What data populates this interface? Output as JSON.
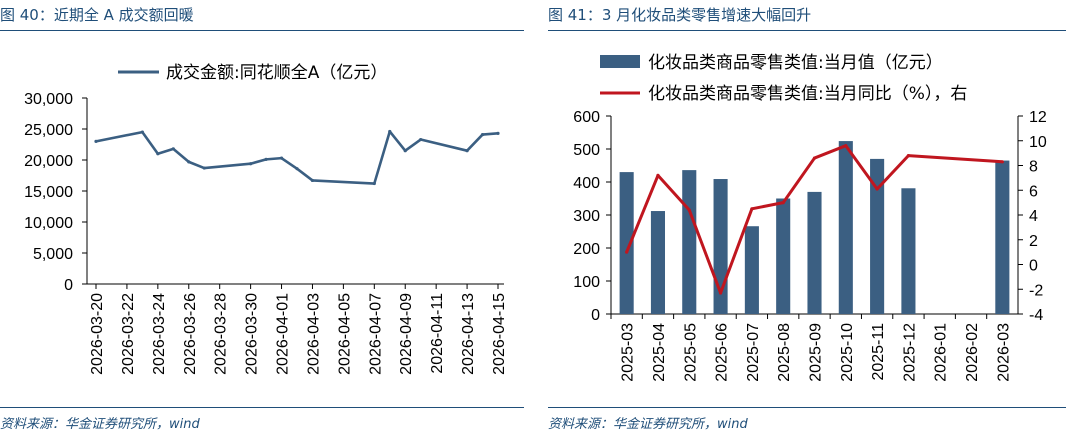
{
  "left": {
    "title": "图 40：近期全 A 成交额回暖",
    "source": "资料来源：华金证券研究所，wind",
    "chart_data": {
      "type": "line",
      "title": "",
      "xlabel": "",
      "ylabel": "",
      "ylim": [
        0,
        30000
      ],
      "yticks": [
        "0",
        "5,000",
        "10,000",
        "15,000",
        "20,000",
        "25,000",
        "30,000"
      ],
      "x_tick_labels": [
        "2026-03-20",
        "2026-03-22",
        "2026-03-24",
        "2026-03-26",
        "2026-03-28",
        "2026-03-30",
        "2026-04-01",
        "2026-04-03",
        "2026-04-05",
        "2026-04-07",
        "2026-04-09",
        "2026-04-11",
        "2026-04-13",
        "2026-04-15"
      ],
      "grid": false,
      "legend_position": "top",
      "series": [
        {
          "name": "成交金额:同花顺全A（亿元）",
          "color": "#3b5f82",
          "points": [
            {
              "x": "2026-03-20",
              "y": 23000
            },
            {
              "x": "2026-03-23",
              "y": 24500
            },
            {
              "x": "2026-03-24",
              "y": 21000
            },
            {
              "x": "2026-03-25",
              "y": 21800
            },
            {
              "x": "2026-03-26",
              "y": 19700
            },
            {
              "x": "2026-03-27",
              "y": 18700
            },
            {
              "x": "2026-03-30",
              "y": 19400
            },
            {
              "x": "2026-03-31",
              "y": 20100
            },
            {
              "x": "2026-04-01",
              "y": 20300
            },
            {
              "x": "2026-04-02",
              "y": 18600
            },
            {
              "x": "2026-04-03",
              "y": 16700
            },
            {
              "x": "2026-04-07",
              "y": 16200
            },
            {
              "x": "2026-04-08",
              "y": 24600
            },
            {
              "x": "2026-04-09",
              "y": 21500
            },
            {
              "x": "2026-04-10",
              "y": 23300
            },
            {
              "x": "2026-04-13",
              "y": 21500
            },
            {
              "x": "2026-04-14",
              "y": 24100
            },
            {
              "x": "2026-04-15",
              "y": 24300
            }
          ]
        }
      ]
    }
  },
  "right": {
    "title": "图 41：3 月化妆品类零售增速大幅回升",
    "source": "资料来源：华金证券研究所，wind",
    "chart_data": {
      "type": "bar",
      "title": "",
      "xlabel": "",
      "ylabel": "",
      "categories": [
        "2025-03",
        "2025-04",
        "2025-05",
        "2025-06",
        "2025-07",
        "2025-08",
        "2025-09",
        "2025-10",
        "2025-11",
        "2025-12",
        "2026-01",
        "2026-02",
        "2026-03"
      ],
      "ylim": [
        0,
        600
      ],
      "yticks": [
        "0",
        "100",
        "200",
        "300",
        "400",
        "500",
        "600"
      ],
      "y2lim": [
        -4,
        12
      ],
      "y2ticks": [
        "-4",
        "-2",
        "0",
        "2",
        "4",
        "6",
        "8",
        "10",
        "12"
      ],
      "grid": false,
      "legend_position": "top",
      "series": [
        {
          "name": "化妆品类商品零售类值:当月值（亿元）",
          "type": "bar",
          "axis": "left",
          "color": "#3b5f82",
          "values": [
            430,
            312,
            436,
            409,
            266,
            350,
            370,
            524,
            470,
            381,
            null,
            null,
            465
          ]
        },
        {
          "name": "化妆品类商品零售类值:当月同比（%），右",
          "type": "line",
          "axis": "right",
          "color": "#c0161f",
          "values": [
            1.0,
            7.2,
            4.4,
            -2.3,
            4.5,
            5.0,
            8.6,
            9.6,
            6.1,
            8.8,
            null,
            null,
            8.3
          ]
        }
      ]
    }
  }
}
